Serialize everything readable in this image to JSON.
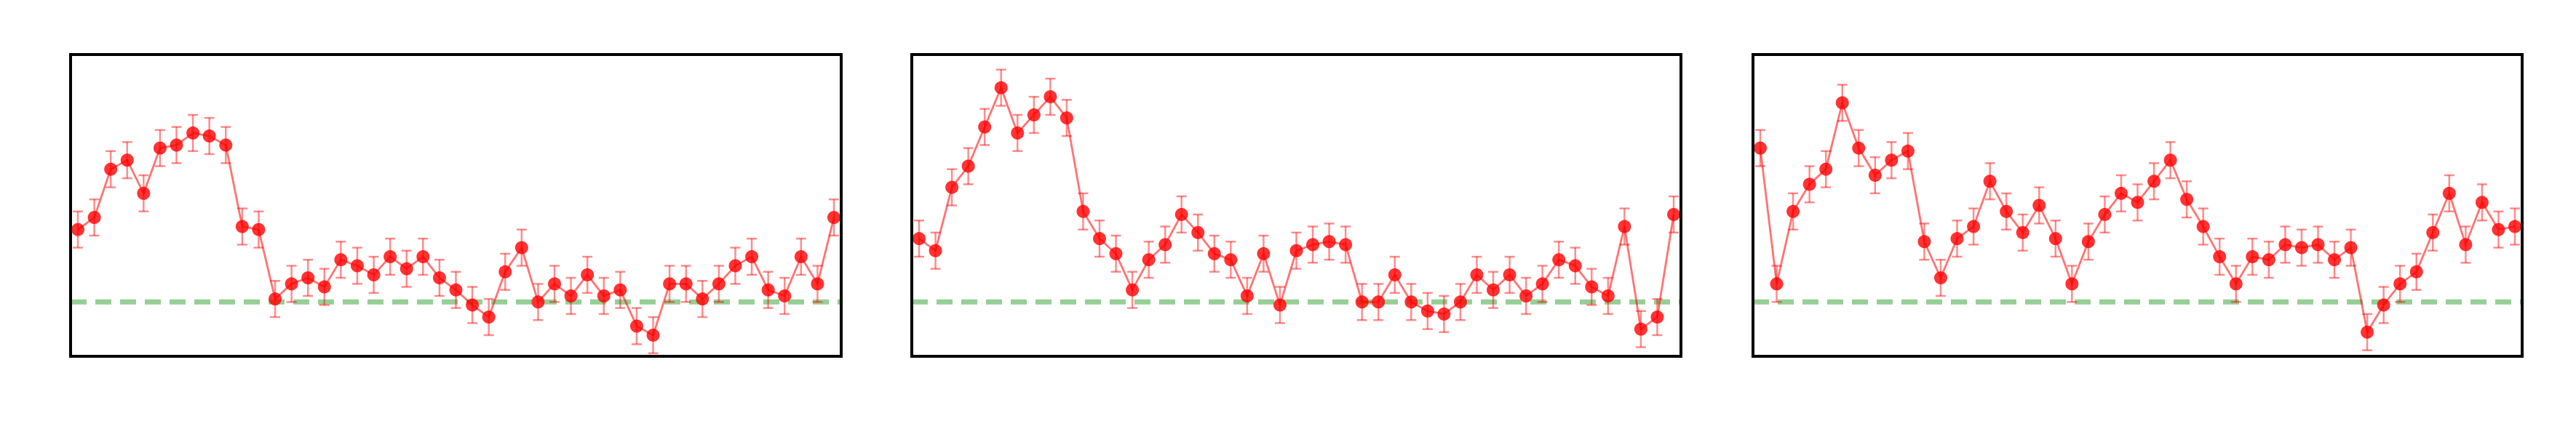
{
  "chart_data": [
    {
      "type": "line",
      "ylim": [
        0,
        1
      ],
      "hline": {
        "value": 0.18,
        "color": "#2ca02c"
      },
      "series": [
        {
          "color": "#ff0000",
          "values": [
            0.42,
            0.46,
            0.62,
            0.65,
            0.54,
            0.69,
            0.7,
            0.74,
            0.73,
            0.7,
            0.43,
            0.42,
            0.19,
            0.24,
            0.26,
            0.23,
            0.32,
            0.3,
            0.27,
            0.33,
            0.29,
            0.33,
            0.26,
            0.22,
            0.17,
            0.13,
            0.28,
            0.36,
            0.18,
            0.24,
            0.2,
            0.27,
            0.2,
            0.22,
            0.1,
            0.07,
            0.24,
            0.24,
            0.19,
            0.24,
            0.3,
            0.33,
            0.22,
            0.2,
            0.33,
            0.24,
            0.46
          ],
          "errors": [
            0.06,
            0.06,
            0.06,
            0.06,
            0.06,
            0.06,
            0.06,
            0.06,
            0.06,
            0.06,
            0.06,
            0.06,
            0.06,
            0.06,
            0.06,
            0.06,
            0.06,
            0.06,
            0.06,
            0.06,
            0.06,
            0.06,
            0.06,
            0.06,
            0.06,
            0.06,
            0.06,
            0.06,
            0.06,
            0.06,
            0.06,
            0.06,
            0.06,
            0.06,
            0.06,
            0.06,
            0.06,
            0.06,
            0.06,
            0.06,
            0.06,
            0.06,
            0.06,
            0.06,
            0.06,
            0.06,
            0.06
          ]
        }
      ]
    },
    {
      "type": "line",
      "ylim": [
        0,
        1
      ],
      "hline": {
        "value": 0.18,
        "color": "#2ca02c"
      },
      "series": [
        {
          "color": "#ff0000",
          "values": [
            0.39,
            0.35,
            0.56,
            0.63,
            0.76,
            0.89,
            0.74,
            0.8,
            0.86,
            0.79,
            0.48,
            0.39,
            0.34,
            0.22,
            0.32,
            0.37,
            0.47,
            0.41,
            0.34,
            0.32,
            0.2,
            0.34,
            0.17,
            0.35,
            0.37,
            0.38,
            0.37,
            0.18,
            0.18,
            0.27,
            0.18,
            0.15,
            0.14,
            0.18,
            0.27,
            0.22,
            0.27,
            0.2,
            0.24,
            0.32,
            0.3,
            0.23,
            0.2,
            0.43,
            0.09,
            0.13,
            0.47
          ],
          "errors": [
            0.06,
            0.06,
            0.06,
            0.06,
            0.06,
            0.06,
            0.06,
            0.06,
            0.06,
            0.06,
            0.06,
            0.06,
            0.06,
            0.06,
            0.06,
            0.06,
            0.06,
            0.06,
            0.06,
            0.06,
            0.06,
            0.06,
            0.06,
            0.06,
            0.06,
            0.06,
            0.06,
            0.06,
            0.06,
            0.06,
            0.06,
            0.06,
            0.06,
            0.06,
            0.06,
            0.06,
            0.06,
            0.06,
            0.06,
            0.06,
            0.06,
            0.06,
            0.06,
            0.06,
            0.06,
            0.06,
            0.06
          ]
        }
      ]
    },
    {
      "type": "line",
      "ylim": [
        0,
        1
      ],
      "hline": {
        "value": 0.18,
        "color": "#2ca02c"
      },
      "series": [
        {
          "color": "#ff0000",
          "values": [
            0.69,
            0.24,
            0.48,
            0.57,
            0.62,
            0.84,
            0.69,
            0.6,
            0.65,
            0.68,
            0.38,
            0.26,
            0.39,
            0.43,
            0.58,
            0.48,
            0.41,
            0.5,
            0.39,
            0.24,
            0.38,
            0.47,
            0.54,
            0.51,
            0.58,
            0.65,
            0.52,
            0.43,
            0.33,
            0.24,
            0.33,
            0.32,
            0.37,
            0.36,
            0.37,
            0.32,
            0.36,
            0.08,
            0.17,
            0.24,
            0.28,
            0.41,
            0.54,
            0.37,
            0.51,
            0.42,
            0.43
          ],
          "errors": [
            0.06,
            0.06,
            0.06,
            0.06,
            0.06,
            0.06,
            0.06,
            0.06,
            0.06,
            0.06,
            0.06,
            0.06,
            0.06,
            0.06,
            0.06,
            0.06,
            0.06,
            0.06,
            0.06,
            0.06,
            0.06,
            0.06,
            0.06,
            0.06,
            0.06,
            0.06,
            0.06,
            0.06,
            0.06,
            0.06,
            0.06,
            0.06,
            0.06,
            0.06,
            0.06,
            0.06,
            0.06,
            0.06,
            0.06,
            0.06,
            0.06,
            0.06,
            0.06,
            0.06,
            0.06,
            0.06,
            0.06
          ]
        }
      ]
    }
  ]
}
